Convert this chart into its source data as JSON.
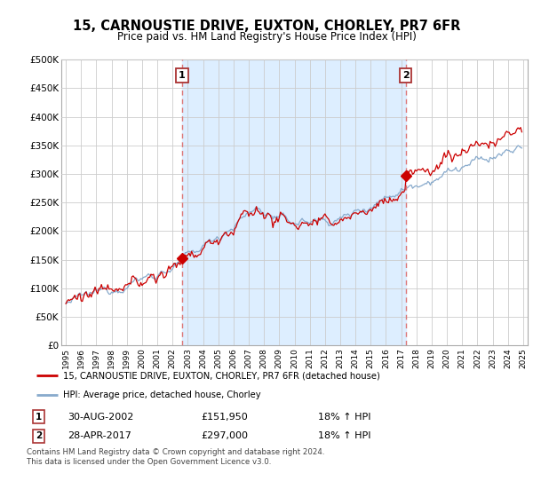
{
  "title": "15, CARNOUSTIE DRIVE, EUXTON, CHORLEY, PR7 6FR",
  "subtitle": "Price paid vs. HM Land Registry's House Price Index (HPI)",
  "ylabel_ticks": [
    "£0",
    "£50K",
    "£100K",
    "£150K",
    "£200K",
    "£250K",
    "£300K",
    "£350K",
    "£400K",
    "£450K",
    "£500K"
  ],
  "ytick_values": [
    0,
    50000,
    100000,
    150000,
    200000,
    250000,
    300000,
    350000,
    400000,
    450000,
    500000
  ],
  "ylim": [
    0,
    500000
  ],
  "sale1_date": "30-AUG-2002",
  "sale1_price": 151950,
  "sale1_label": "£151,950",
  "sale1_hpi": "18% ↑ HPI",
  "sale2_date": "28-APR-2017",
  "sale2_price": 297000,
  "sale2_label": "£297,000",
  "sale2_hpi": "18% ↑ HPI",
  "legend_line1": "15, CARNOUSTIE DRIVE, EUXTON, CHORLEY, PR7 6FR (detached house)",
  "legend_line2": "HPI: Average price, detached house, Chorley",
  "footer": "Contains HM Land Registry data © Crown copyright and database right 2024.\nThis data is licensed under the Open Government Licence v3.0.",
  "line_color_red": "#cc0000",
  "line_color_blue": "#88aacc",
  "vline_color": "#dd7777",
  "shade_color": "#ddeeff",
  "background_color": "#ffffff",
  "grid_color": "#cccccc",
  "start_year": 1995,
  "end_year": 2025
}
